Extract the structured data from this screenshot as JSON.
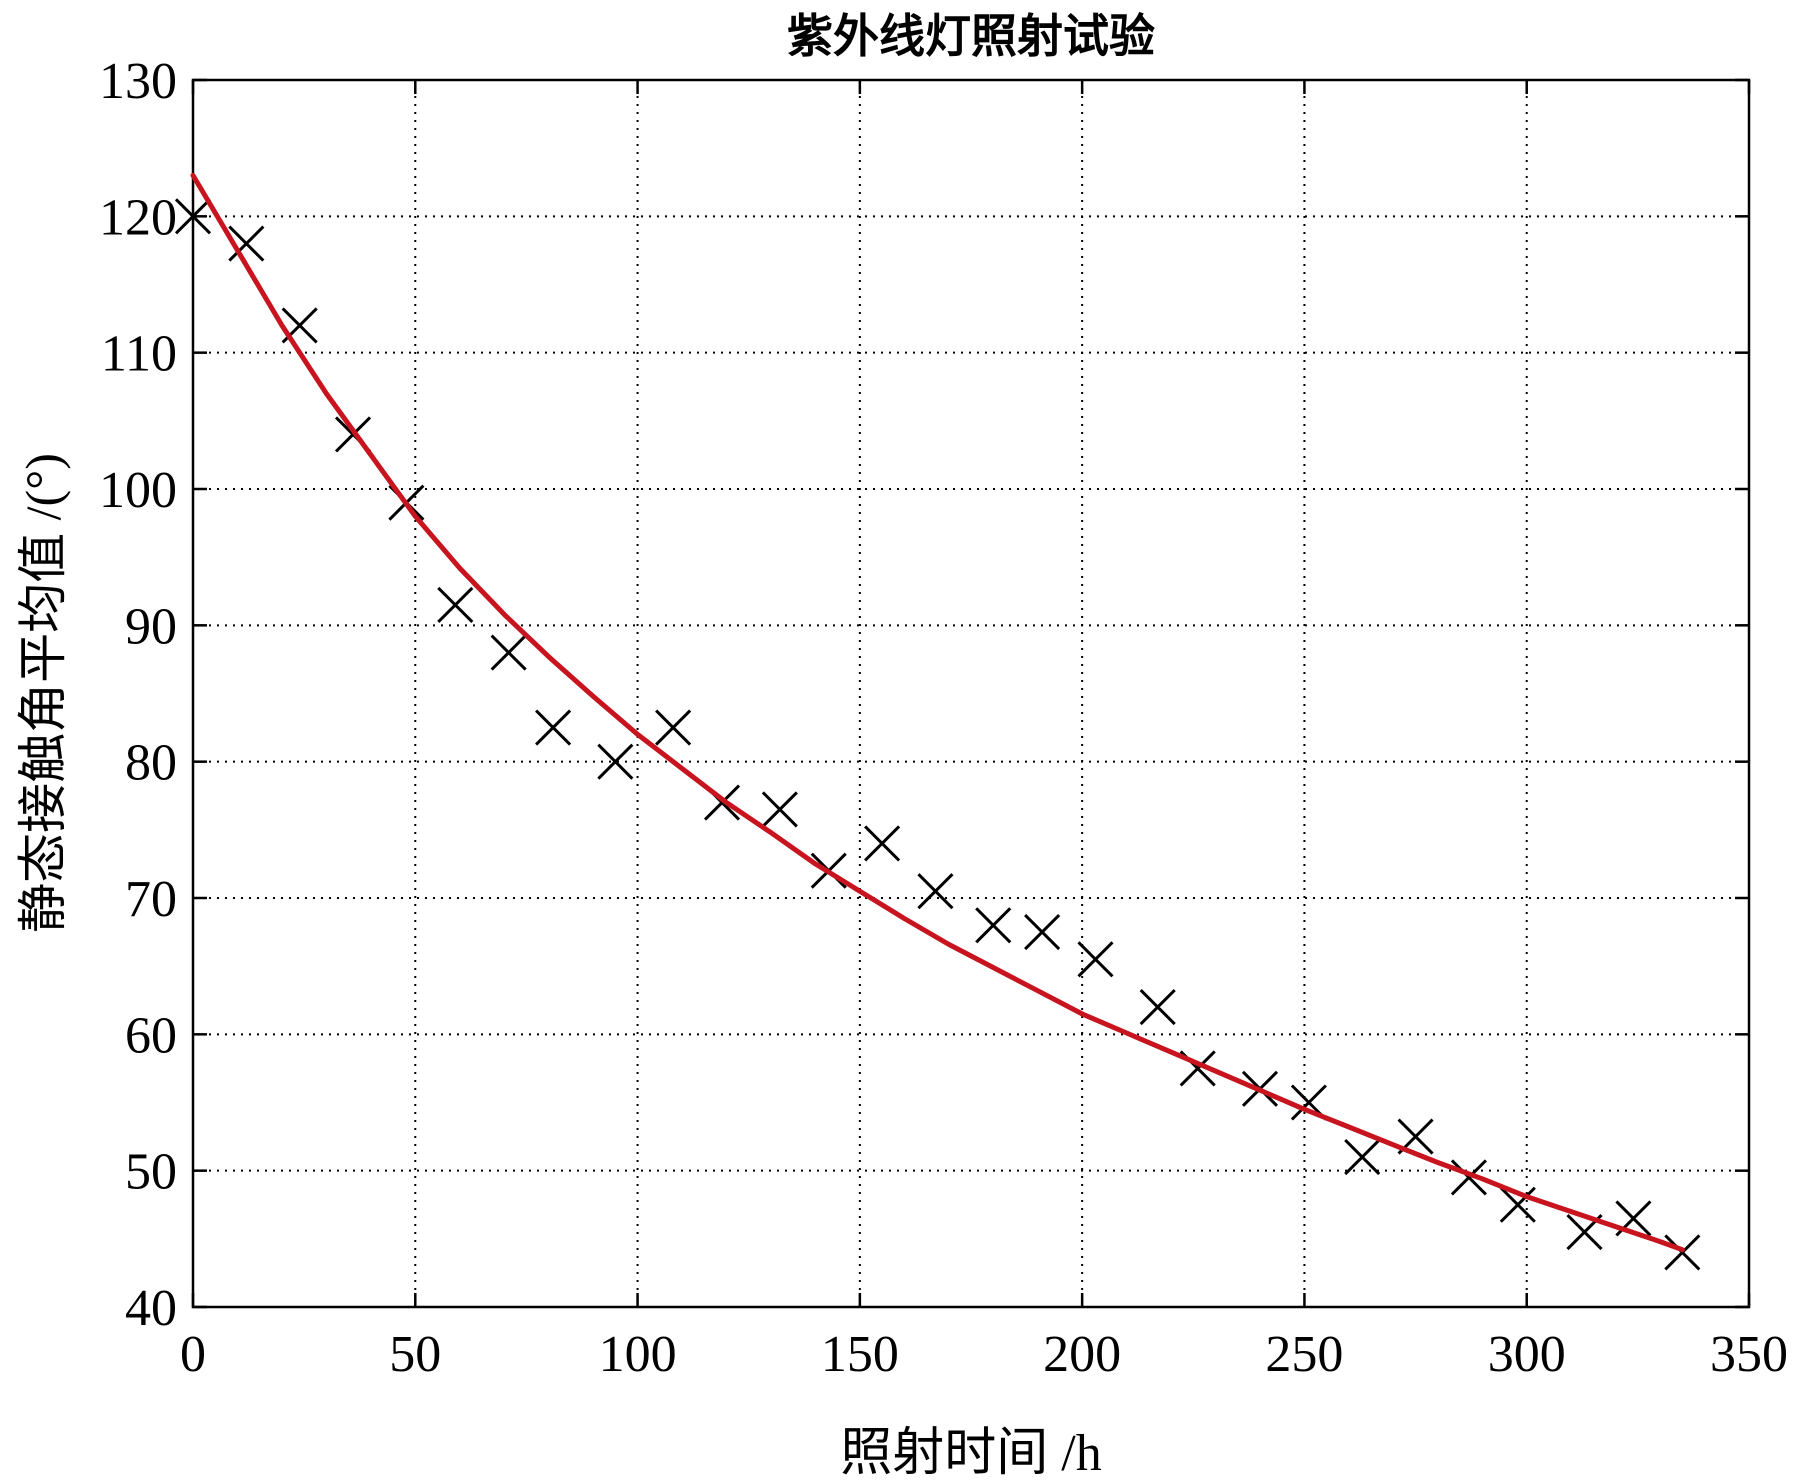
{
  "chart_data": {
    "type": "scatter",
    "title": "紫外线灯照射试验",
    "xlabel": "照射时间 /h",
    "ylabel": "静态接触角平均值 /(°)",
    "xlim": [
      0,
      350
    ],
    "ylim": [
      40,
      130
    ],
    "xticks": [
      0,
      50,
      100,
      150,
      200,
      250,
      300,
      350
    ],
    "yticks": [
      40,
      50,
      60,
      70,
      80,
      90,
      100,
      110,
      120,
      130
    ],
    "grid": true,
    "series": [
      {
        "kind": "scatter",
        "marker": "x",
        "color": "#000000",
        "points": [
          [
            0,
            120
          ],
          [
            12,
            118
          ],
          [
            24,
            112
          ],
          [
            36,
            104
          ],
          [
            48,
            99
          ],
          [
            59,
            91.5
          ],
          [
            71,
            88
          ],
          [
            81,
            82.5
          ],
          [
            95,
            80
          ],
          [
            108,
            82.5
          ],
          [
            119,
            77
          ],
          [
            132,
            76.5
          ],
          [
            143,
            72
          ],
          [
            155,
            74
          ],
          [
            167,
            70.5
          ],
          [
            180,
            68
          ],
          [
            191,
            67.5
          ],
          [
            203,
            65.5
          ],
          [
            217,
            62
          ],
          [
            226,
            57.5
          ],
          [
            240,
            56
          ],
          [
            251,
            55
          ],
          [
            263,
            51
          ],
          [
            275,
            52.5
          ],
          [
            287,
            49.5
          ],
          [
            298,
            47.5
          ],
          [
            313,
            45.5
          ],
          [
            324,
            46.5
          ],
          [
            335,
            44
          ]
        ]
      },
      {
        "kind": "line",
        "color": "#c8141e",
        "points": [
          [
            0,
            123
          ],
          [
            10,
            117.5
          ],
          [
            20,
            112
          ],
          [
            30,
            107
          ],
          [
            40,
            102.5
          ],
          [
            50,
            98
          ],
          [
            60,
            94.2
          ],
          [
            70,
            90.8
          ],
          [
            80,
            87.7
          ],
          [
            90,
            84.8
          ],
          [
            100,
            82
          ],
          [
            110,
            79.5
          ],
          [
            120,
            77
          ],
          [
            130,
            74.8
          ],
          [
            140,
            72.5
          ],
          [
            150,
            70.5
          ],
          [
            160,
            68.5
          ],
          [
            170,
            66.6
          ],
          [
            180,
            64.9
          ],
          [
            190,
            63.2
          ],
          [
            200,
            61.5
          ],
          [
            210,
            60.1
          ],
          [
            220,
            58.7
          ],
          [
            230,
            57.3
          ],
          [
            240,
            55.9
          ],
          [
            250,
            54.5
          ],
          [
            260,
            53.2
          ],
          [
            270,
            51.9
          ],
          [
            280,
            50.6
          ],
          [
            290,
            49.4
          ],
          [
            300,
            48.1
          ],
          [
            310,
            47
          ],
          [
            320,
            45.9
          ],
          [
            330,
            44.8
          ],
          [
            335,
            44.2
          ]
        ]
      }
    ]
  }
}
